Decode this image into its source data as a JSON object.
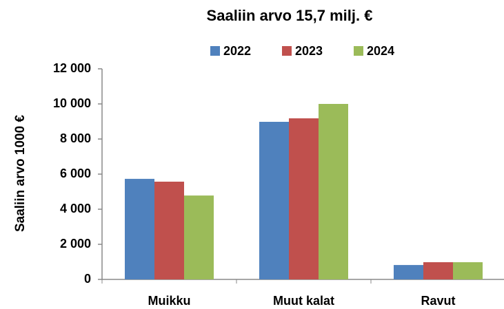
{
  "chart_data": {
    "type": "bar",
    "title": "Saaliin arvo  15,7 milj. €",
    "y_label": "Saaliin arvo 1000 €",
    "categories": [
      "Muikku",
      "Muut kalat",
      "Ravut"
    ],
    "series": [
      {
        "name": "2022",
        "color": "#4f81bd",
        "values": [
          5730,
          8980,
          820
        ]
      },
      {
        "name": "2023",
        "color": "#c0504d",
        "values": [
          5570,
          9180,
          980
        ]
      },
      {
        "name": "2024",
        "color": "#9bbb59",
        "values": [
          4780,
          10000,
          980
        ]
      }
    ],
    "ylim": [
      0,
      12000
    ],
    "yticks": [
      0,
      {
        "value": 2000,
        "label": "2 000"
      },
      {
        "value": 4000,
        "label": "4 000"
      },
      {
        "value": 6000,
        "label": "6 000"
      },
      {
        "value": 8000,
        "label": "8 000"
      },
      {
        "value": 10000,
        "label": "10 000"
      },
      {
        "value": 12000,
        "label": "12 000"
      }
    ],
    "grid": false,
    "legend": "top"
  }
}
